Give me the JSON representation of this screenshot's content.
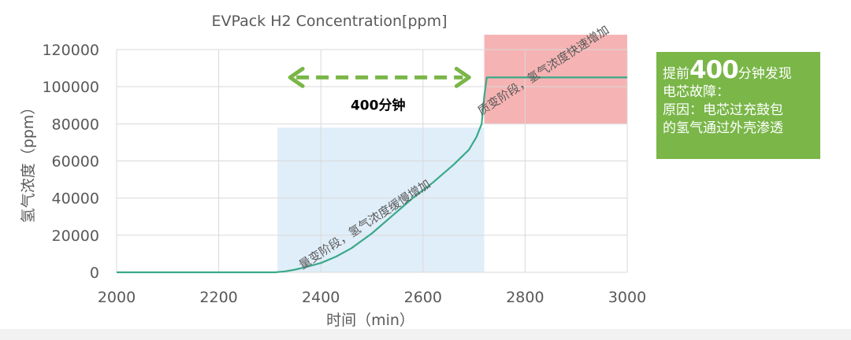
{
  "chart_data": {
    "type": "line",
    "title": "EVPack H2 Concentration[ppm]",
    "xlabel": "时间（min）",
    "ylabel": "氢气浓度（ppm）",
    "xlim": [
      2000,
      3000
    ],
    "ylim": [
      0,
      120000
    ],
    "xticks": [
      2000,
      2200,
      2400,
      2600,
      2800,
      3000
    ],
    "yticks": [
      0,
      20000,
      40000,
      60000,
      80000,
      100000,
      120000
    ],
    "grid": true,
    "series": [
      {
        "color": "#3aa98a",
        "x": [
          2000,
          2310,
          2330,
          2350,
          2380,
          2400,
          2430,
          2460,
          2500,
          2540,
          2580,
          2620,
          2660,
          2690,
          2705,
          2715,
          2720,
          2725,
          3000
        ],
        "y": [
          0,
          0,
          500,
          1500,
          3500,
          5000,
          8500,
          13000,
          21000,
          30500,
          40000,
          48500,
          58000,
          66000,
          73000,
          80000,
          95000,
          105000,
          105000
        ]
      }
    ],
    "regions": [
      {
        "label": "量变阶段，氢气浓度缓慢增加",
        "x_range": [
          2315,
          2720
        ],
        "y_range": [
          0,
          78000
        ],
        "color": "#d6e8f7"
      },
      {
        "label": "质变阶段，氢气浓度快速增加",
        "x_range": [
          2720,
          3000
        ],
        "y_range": [
          80000,
          128000
        ],
        "color": "#f4a6a6"
      }
    ],
    "annotation": {
      "label": "400分钟",
      "x_range": [
        2315,
        2715
      ],
      "y": 105000,
      "color": "#7ab648"
    }
  },
  "conclusion": {
    "line1_pre": "提前",
    "line1_num": "400",
    "line1_post": "分钟发现",
    "line2": "电芯故障：",
    "line3": "原因：电芯过充鼓包",
    "line4": "的氢气通过外壳渗透"
  }
}
